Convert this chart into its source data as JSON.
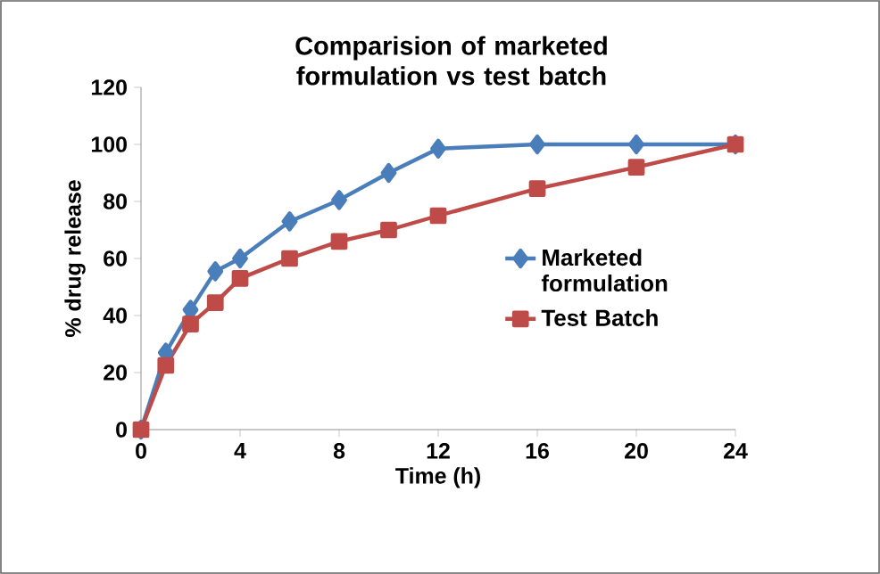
{
  "chart_data": {
    "type": "line",
    "title": "Comparision of marketed formulation vs test batch",
    "xlabel": "Time (h)",
    "ylabel": "% drug release",
    "x": [
      0,
      1,
      2,
      3,
      4,
      6,
      8,
      10,
      12,
      16,
      20,
      24
    ],
    "series": [
      {
        "name": "Marketed formulation",
        "color": "#4a7ebb",
        "marker": "diamond",
        "values": [
          0,
          27,
          42,
          55.5,
          60,
          73,
          80.5,
          90,
          98.5,
          100,
          100,
          100
        ]
      },
      {
        "name": "Test Batch",
        "color": "#be4b48",
        "marker": "square",
        "values": [
          0,
          22.5,
          37,
          44.5,
          53,
          60,
          66,
          70,
          75,
          84.5,
          92,
          100
        ]
      }
    ],
    "xlim": [
      0,
      24
    ],
    "xticks": [
      0,
      4,
      8,
      12,
      16,
      20,
      24
    ],
    "ylim": [
      0,
      120
    ],
    "yticks": [
      0,
      20,
      40,
      60,
      80,
      100,
      120
    ],
    "grid": false,
    "legend": "right",
    "line_style": "solid"
  }
}
